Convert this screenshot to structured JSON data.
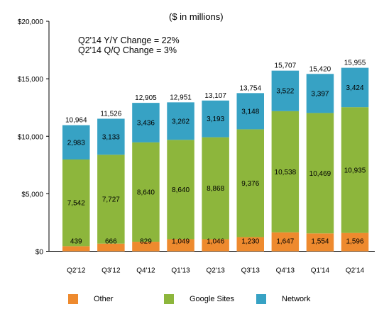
{
  "chart_data": {
    "type": "bar",
    "stacked": true,
    "unit_note": "($ in millions)",
    "annotations": [
      "Q2'14 Y/Y Change = 22%",
      "Q2'14 Q/Q Change = 3%"
    ],
    "categories": [
      "Q2'12",
      "Q3'12",
      "Q4'12",
      "Q1'13",
      "Q2'13",
      "Q3'13",
      "Q4'13",
      "Q1'14",
      "Q2'14"
    ],
    "series": [
      {
        "name": "Other",
        "color": "#ee8a2e",
        "values": [
          439,
          666,
          829,
          1049,
          1046,
          1230,
          1647,
          1554,
          1596
        ],
        "labels": [
          "439",
          "666",
          "829",
          "1,049",
          "1,046",
          "1,230",
          "1,647",
          "1,554",
          "1,596"
        ]
      },
      {
        "name": "Google Sites",
        "color": "#8db63c",
        "values": [
          7542,
          7727,
          8640,
          8640,
          8868,
          9376,
          10538,
          10469,
          10935
        ],
        "labels": [
          "7,542",
          "7,727",
          "8,640",
          "8,640",
          "8,868",
          "9,376",
          "10,538",
          "10,469",
          "10,935"
        ]
      },
      {
        "name": "Network",
        "color": "#37a2c4",
        "values": [
          2983,
          3133,
          3436,
          3262,
          3193,
          3148,
          3522,
          3397,
          3424
        ],
        "labels": [
          "2,983",
          "3,133",
          "3,436",
          "3,262",
          "3,193",
          "3,148",
          "3,522",
          "3,397",
          "3,424"
        ]
      }
    ],
    "totals": [
      10964,
      11526,
      12905,
      12951,
      13107,
      13754,
      15707,
      15420,
      15955
    ],
    "total_labels": [
      "10,964",
      "11,526",
      "12,905",
      "12,951",
      "13,107",
      "13,754",
      "15,707",
      "15,420",
      "15,955"
    ],
    "yticks": [
      0,
      5000,
      10000,
      15000,
      20000
    ],
    "ytick_labels": [
      "$0",
      "$5,000",
      "$10,000",
      "$15,000",
      "$20,000"
    ],
    "ylim": [
      0,
      20000
    ],
    "grid": false,
    "legend_position": "bottom"
  }
}
